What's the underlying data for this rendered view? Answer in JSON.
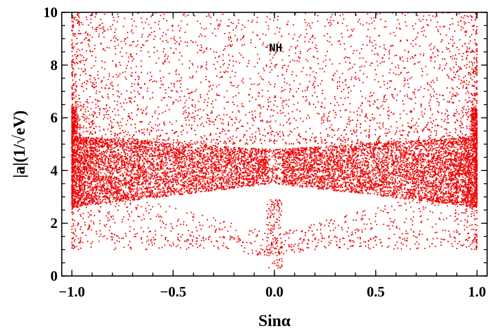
{
  "chart_data": {
    "type": "scatter",
    "title": "",
    "xlabel": "Sinα",
    "ylabel": "|a|(1/√eV)",
    "xlim": [
      -1.05,
      1.05
    ],
    "ylim": [
      0,
      10
    ],
    "x_ticks": [
      "−1.0",
      "−0.5",
      "0.0",
      "0.5",
      "1.0"
    ],
    "x_tick_values": [
      -1.0,
      -0.5,
      0.0,
      0.5,
      1.0
    ],
    "y_ticks": [
      "0",
      "2",
      "4",
      "6",
      "8",
      "10"
    ],
    "y_tick_values": [
      0,
      2,
      4,
      6,
      8,
      10
    ],
    "annotation": "NH",
    "grid": false,
    "frame": true,
    "marker_color": "#ee0000",
    "series": [
      {
        "x_range": [
          -1.0,
          1.0
        ],
        "description": "dense band between |a|≈2.6 and ≈5.2, widening toward |Sinα|=1; sparse points up to 10; narrow spike down to ≈0.3 near Sinα=0",
        "sample_points": [
          [
            -1.0,
            2.6
          ],
          [
            -1.0,
            6.5
          ],
          [
            -0.95,
            2.7
          ],
          [
            -0.9,
            4.0
          ],
          [
            -0.8,
            3.9
          ],
          [
            -0.6,
            4.2
          ],
          [
            -0.4,
            4.4
          ],
          [
            -0.2,
            4.6
          ],
          [
            -0.05,
            3.0
          ],
          [
            0.0,
            1.2
          ],
          [
            0.0,
            0.3
          ],
          [
            0.02,
            1.8
          ],
          [
            0.05,
            3.2
          ],
          [
            0.2,
            4.5
          ],
          [
            0.4,
            4.4
          ],
          [
            0.6,
            4.1
          ],
          [
            0.8,
            3.9
          ],
          [
            0.95,
            2.7
          ],
          [
            1.0,
            2.6
          ],
          [
            1.0,
            6.5
          ],
          [
            -0.3,
            8.5
          ],
          [
            0.3,
            9.0
          ],
          [
            -0.7,
            9.5
          ],
          [
            0.7,
            8.8
          ],
          [
            0.0,
            8.6
          ]
        ]
      }
    ]
  }
}
